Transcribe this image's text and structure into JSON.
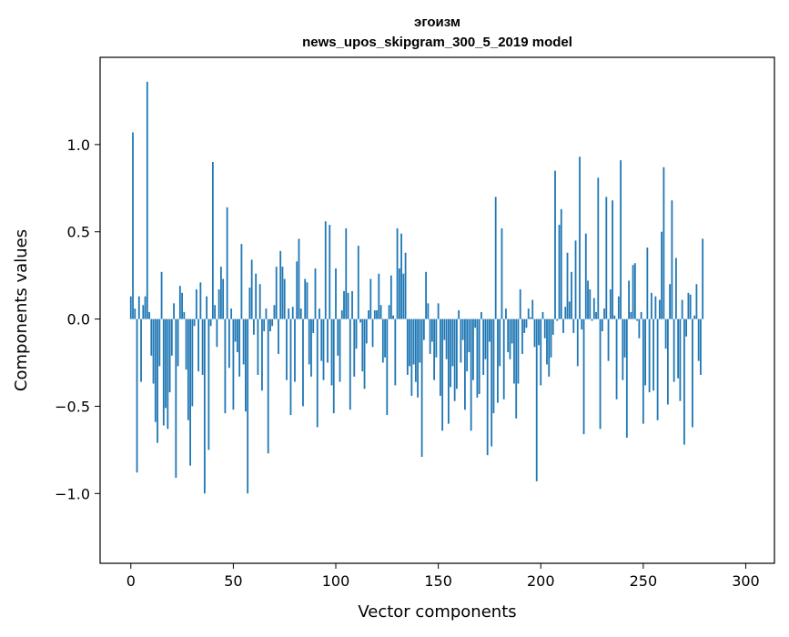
{
  "chart_data": {
    "type": "bar",
    "title": "эгоизм",
    "subtitle": "news_upos_skipgram_300_5_2019 model",
    "xlabel": "Vector components",
    "ylabel": "Components values",
    "xlim": [
      -15,
      314
    ],
    "ylim": [
      -1.4,
      1.5
    ],
    "xticks": [
      0,
      50,
      100,
      150,
      200,
      250,
      300
    ],
    "xtick_labels": [
      "0",
      "50",
      "100",
      "150",
      "200",
      "250",
      "300"
    ],
    "yticks": [
      -1.0,
      -0.5,
      0.0,
      0.5,
      1.0
    ],
    "ytick_labels": [
      "−1.0",
      "−0.5",
      "0.0",
      "0.5",
      "1.0"
    ],
    "bar_color": "#1f77b4",
    "grid": false,
    "series": [
      {
        "name": "эгоизм",
        "x_start": 0,
        "values": [
          0.13,
          1.07,
          0.06,
          -0.88,
          0.13,
          -0.36,
          0.08,
          0.13,
          1.36,
          0.04,
          -0.21,
          -0.37,
          -0.59,
          -0.71,
          -0.27,
          0.27,
          -0.61,
          -0.51,
          -0.63,
          -0.42,
          -0.21,
          0.09,
          -0.91,
          -0.27,
          0.19,
          0.15,
          0.04,
          -0.29,
          -0.58,
          -0.84,
          -0.5,
          -0.04,
          0.17,
          -0.3,
          0.21,
          -0.32,
          -1.0,
          0.13,
          -0.75,
          -0.04,
          0.9,
          0.08,
          -0.16,
          0.17,
          0.3,
          0.23,
          -0.54,
          0.64,
          -0.28,
          0.06,
          -0.52,
          -0.13,
          -0.19,
          -0.33,
          0.43,
          -0.26,
          -0.53,
          -1.0,
          0.18,
          0.34,
          -0.09,
          0.26,
          -0.32,
          0.2,
          -0.41,
          -0.07,
          0.06,
          -0.77,
          -0.07,
          -0.04,
          0.08,
          0.3,
          -0.2,
          0.39,
          0.3,
          0.23,
          -0.35,
          0.06,
          -0.55,
          0.07,
          -0.36,
          0.33,
          0.46,
          0.06,
          -0.5,
          0.23,
          0.21,
          -0.26,
          -0.33,
          -0.08,
          0.29,
          -0.62,
          0.06,
          -0.24,
          -0.35,
          0.56,
          -0.25,
          0.54,
          -0.38,
          -0.54,
          0.29,
          -0.21,
          -0.36,
          0.05,
          0.16,
          0.52,
          0.15,
          -0.52,
          0.16,
          -0.33,
          -0.17,
          0.42,
          -0.02,
          -0.3,
          -0.4,
          -0.14,
          0.05,
          0.23,
          -0.16,
          0.05,
          0.05,
          0.26,
          0.08,
          -0.25,
          -0.22,
          -0.55,
          0.08,
          0.25,
          0.02,
          -0.38,
          0.52,
          0.29,
          0.49,
          0.26,
          0.38,
          -0.32,
          -0.27,
          -0.44,
          -0.26,
          -0.36,
          -0.45,
          -0.25,
          -0.79,
          -0.12,
          0.27,
          0.09,
          -0.2,
          -0.13,
          -0.35,
          -0.22,
          0.09,
          -0.44,
          -0.64,
          -0.12,
          -0.23,
          -0.6,
          -0.39,
          -0.27,
          -0.47,
          -0.4,
          0.05,
          -0.25,
          -0.12,
          -0.52,
          -0.3,
          -0.19,
          -0.64,
          -0.35,
          -0.05,
          -0.45,
          -0.43,
          0.04,
          -0.32,
          -0.23,
          -0.78,
          -0.13,
          -0.73,
          -0.54,
          0.7,
          -0.48,
          -0.27,
          0.52,
          -0.46,
          0.06,
          -0.19,
          -0.23,
          -0.14,
          -0.37,
          -0.57,
          -0.37,
          0.17,
          -0.2,
          -0.08,
          -0.05,
          0.06,
          0.01,
          0.11,
          -0.16,
          -0.93,
          -0.15,
          -0.38,
          0.04,
          -0.11,
          -0.26,
          -0.33,
          -0.22,
          -0.09,
          0.85,
          -0.01,
          0.54,
          0.63,
          -0.08,
          0.07,
          0.38,
          0.1,
          0.27,
          -0.08,
          0.45,
          -0.27,
          0.93,
          -0.06,
          -0.66,
          0.49,
          0.22,
          0.17,
          -0.01,
          0.12,
          0.04,
          0.81,
          -0.63,
          -0.07,
          0.06,
          0.7,
          -0.24,
          0.17,
          0.68,
          0.02,
          -0.46,
          0.13,
          0.91,
          -0.35,
          -0.22,
          -0.68,
          0.22,
          0.04,
          0.31,
          0.32,
          -0.01,
          -0.11,
          0.04,
          -0.6,
          -0.38,
          0.41,
          -0.42,
          0.15,
          -0.41,
          0.13,
          -0.58,
          0.11,
          0.5,
          0.87,
          -0.17,
          -0.49,
          0.2,
          0.68,
          -0.36,
          0.35,
          -0.34,
          -0.47,
          0.11,
          -0.72,
          -0.1,
          0.15,
          0.14,
          -0.62,
          0.02,
          0.2,
          -0.24,
          -0.32,
          0.46
        ]
      }
    ]
  }
}
